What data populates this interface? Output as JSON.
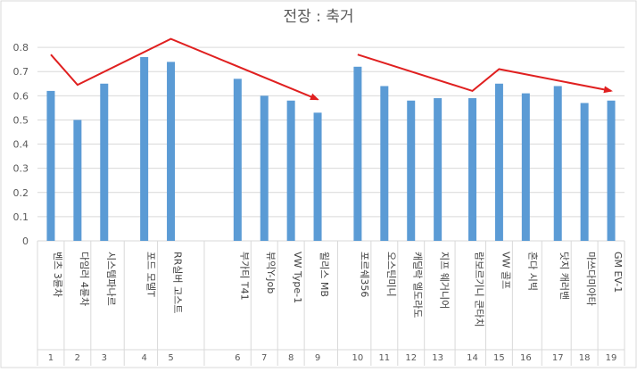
{
  "chart_data": {
    "type": "bar",
    "title": "전장 : 축거",
    "xlabel": "",
    "ylabel": "",
    "ylim": [
      0,
      0.9
    ],
    "yticks": [
      0,
      0.1,
      0.2,
      0.3,
      0.4,
      0.5,
      0.6,
      0.7,
      0.8
    ],
    "grid": true,
    "legend": "none",
    "bar_color": "#5b9bd5",
    "arrow_color": "#e02020",
    "categories": [
      {
        "index": "1",
        "label": "벤츠 3륜차"
      },
      {
        "index": "2",
        "label": "다임러 4륜차"
      },
      {
        "index": "3",
        "label": "시스템파나르"
      },
      {
        "index": "4",
        "label": "포드 모델T"
      },
      {
        "index": "5",
        "label": "RR실버 고스트"
      },
      {
        "index": "6",
        "label": "부가티 T41"
      },
      {
        "index": "7",
        "label": "뷰익Y-Job"
      },
      {
        "index": "8",
        "label": "VW Type-1"
      },
      {
        "index": "9",
        "label": "윌리스 MB"
      },
      {
        "index": "10",
        "label": "포르쉐356"
      },
      {
        "index": "11",
        "label": "오스틴미니"
      },
      {
        "index": "12",
        "label": "캐딜락 엘도라도"
      },
      {
        "index": "13",
        "label": "지프 웨거니어"
      },
      {
        "index": "14",
        "label": "람보르기니 쿤타치"
      },
      {
        "index": "15",
        "label": "VW 골프"
      },
      {
        "index": "16",
        "label": "혼다 시빅"
      },
      {
        "index": "17",
        "label": "닷지 캐러밴"
      },
      {
        "index": "18",
        "label": "마쓰다미아타"
      },
      {
        "index": "19",
        "label": "GM EV-1"
      }
    ],
    "values": [
      0.62,
      0.5,
      0.65,
      0.76,
      0.74,
      0.67,
      0.6,
      0.58,
      0.53,
      0.72,
      0.64,
      0.58,
      0.59,
      0.59,
      0.65,
      0.61,
      0.64,
      0.57,
      0.58
    ],
    "trend_arrows": [
      {
        "points": [
          [
            1,
            0.77
          ],
          [
            2,
            0.645
          ],
          [
            5,
            0.835
          ],
          [
            9,
            0.585
          ]
        ]
      },
      {
        "points": [
          [
            10,
            0.77
          ],
          [
            14,
            0.62
          ],
          [
            15,
            0.71
          ],
          [
            19,
            0.62
          ]
        ]
      }
    ]
  }
}
